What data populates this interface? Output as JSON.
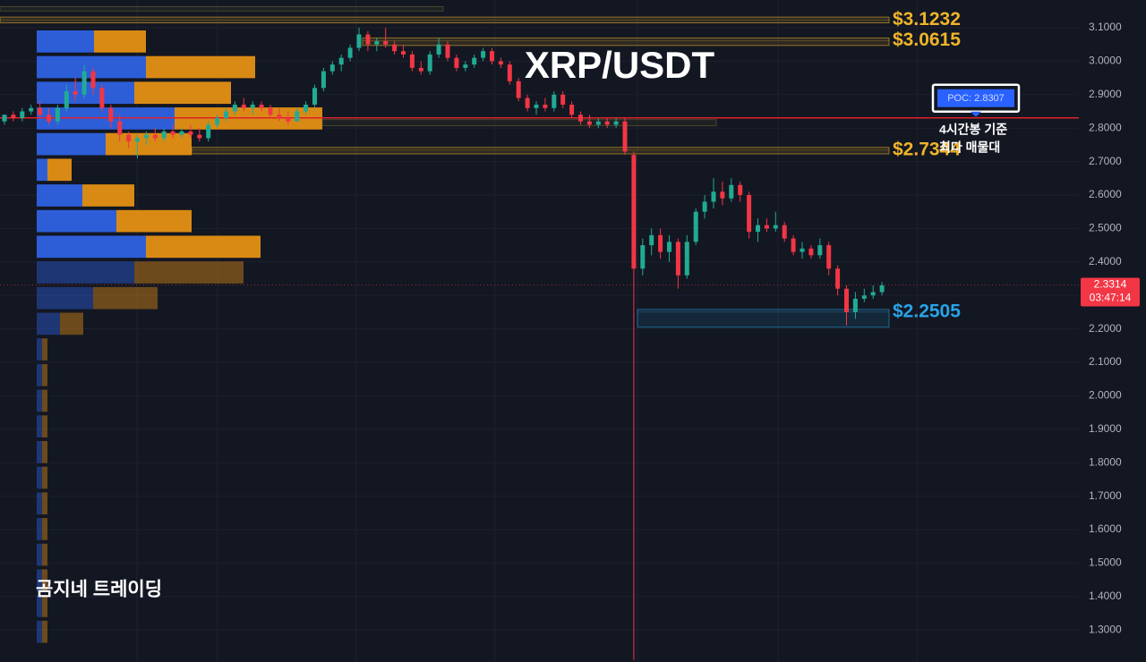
{
  "chart_data": {
    "type": "candlestick",
    "title": "XRP/USDT",
    "watermark": "곰지네 트레이딩",
    "up_color": "#22ab94",
    "down_color": "#f23645",
    "ylim": [
      1.2043,
      3.1829
    ],
    "yticks": [
      {
        "value": 3.1,
        "label": "3.1000"
      },
      {
        "value": 3.0,
        "label": "3.0000"
      },
      {
        "value": 2.9,
        "label": "2.9000"
      },
      {
        "value": 2.8,
        "label": "2.8000"
      },
      {
        "value": 2.7,
        "label": "2.7000"
      },
      {
        "value": 2.6,
        "label": "2.6000"
      },
      {
        "value": 2.5,
        "label": "2.5000"
      },
      {
        "value": 2.4,
        "label": "2.4000"
      },
      {
        "value": 2.3,
        "label": "2.3000"
      },
      {
        "value": 2.2,
        "label": "2.2000"
      },
      {
        "value": 2.1,
        "label": "2.1000"
      },
      {
        "value": 2.0,
        "label": "2.0000"
      },
      {
        "value": 1.9,
        "label": "1.9000"
      },
      {
        "value": 1.8,
        "label": "1.8000"
      },
      {
        "value": 1.7,
        "label": "1.7000"
      },
      {
        "value": 1.6,
        "label": "1.6000"
      },
      {
        "value": 1.5,
        "label": "1.5000"
      },
      {
        "value": 1.4,
        "label": "1.4000"
      },
      {
        "value": 1.3,
        "label": "1.3000"
      }
    ],
    "grid": true,
    "candles": [
      [
        2.82,
        2.84,
        2.81,
        2.84
      ],
      [
        2.84,
        2.85,
        2.82,
        2.83
      ],
      [
        2.83,
        2.86,
        2.82,
        2.85
      ],
      [
        2.85,
        2.87,
        2.84,
        2.86
      ],
      [
        2.86,
        2.88,
        2.83,
        2.84
      ],
      [
        2.84,
        2.86,
        2.81,
        2.82
      ],
      [
        2.82,
        2.87,
        2.81,
        2.86
      ],
      [
        2.86,
        2.93,
        2.85,
        2.91
      ],
      [
        2.91,
        2.95,
        2.88,
        2.9
      ],
      [
        2.9,
        2.99,
        2.89,
        2.97
      ],
      [
        2.97,
        2.98,
        2.9,
        2.92
      ],
      [
        2.92,
        2.93,
        2.85,
        2.86
      ],
      [
        2.86,
        2.87,
        2.8,
        2.82
      ],
      [
        2.82,
        2.84,
        2.76,
        2.78
      ],
      [
        2.78,
        2.79,
        2.74,
        2.76
      ],
      [
        2.76,
        2.78,
        2.71,
        2.77
      ],
      [
        2.77,
        2.79,
        2.75,
        2.78
      ],
      [
        2.78,
        2.8,
        2.76,
        2.77
      ],
      [
        2.77,
        2.8,
        2.76,
        2.79
      ],
      [
        2.79,
        2.81,
        2.77,
        2.78
      ],
      [
        2.78,
        2.8,
        2.77,
        2.79
      ],
      [
        2.79,
        2.81,
        2.77,
        2.78
      ],
      [
        2.78,
        2.8,
        2.76,
        2.77
      ],
      [
        2.77,
        2.82,
        2.76,
        2.81
      ],
      [
        2.81,
        2.84,
        2.8,
        2.83
      ],
      [
        2.83,
        2.86,
        2.82,
        2.85
      ],
      [
        2.85,
        2.88,
        2.84,
        2.87
      ],
      [
        2.87,
        2.89,
        2.85,
        2.86
      ],
      [
        2.86,
        2.88,
        2.84,
        2.87
      ],
      [
        2.87,
        2.88,
        2.85,
        2.86
      ],
      [
        2.86,
        2.87,
        2.83,
        2.84
      ],
      [
        2.84,
        2.86,
        2.82,
        2.83
      ],
      [
        2.83,
        2.85,
        2.81,
        2.82
      ],
      [
        2.82,
        2.86,
        2.82,
        2.85
      ],
      [
        2.85,
        2.88,
        2.84,
        2.87
      ],
      [
        2.87,
        2.93,
        2.86,
        2.92
      ],
      [
        2.92,
        2.98,
        2.91,
        2.97
      ],
      [
        2.97,
        3.0,
        2.96,
        2.99
      ],
      [
        2.99,
        3.02,
        2.97,
        3.01
      ],
      [
        3.01,
        3.05,
        3.0,
        3.04
      ],
      [
        3.04,
        3.1,
        3.03,
        3.08
      ],
      [
        3.08,
        3.09,
        3.03,
        3.05
      ],
      [
        3.05,
        3.07,
        3.03,
        3.06
      ],
      [
        3.06,
        3.1,
        3.04,
        3.05
      ],
      [
        3.05,
        3.06,
        3.02,
        3.03
      ],
      [
        3.03,
        3.05,
        3.01,
        3.02
      ],
      [
        3.02,
        3.03,
        2.97,
        2.98
      ],
      [
        2.98,
        3.0,
        2.96,
        2.97
      ],
      [
        2.97,
        3.03,
        2.96,
        3.02
      ],
      [
        3.02,
        3.07,
        3.01,
        3.05
      ],
      [
        3.05,
        3.06,
        3.0,
        3.01
      ],
      [
        3.01,
        3.02,
        2.97,
        2.98
      ],
      [
        2.98,
        3.0,
        2.97,
        2.99
      ],
      [
        2.99,
        3.02,
        2.98,
        3.01
      ],
      [
        3.01,
        3.04,
        3.0,
        3.03
      ],
      [
        3.03,
        3.04,
        2.99,
        3.0
      ],
      [
        3.0,
        3.01,
        2.98,
        2.99
      ],
      [
        2.99,
        3.0,
        2.93,
        2.94
      ],
      [
        2.94,
        2.95,
        2.88,
        2.89
      ],
      [
        2.89,
        2.9,
        2.85,
        2.86
      ],
      [
        2.86,
        2.88,
        2.84,
        2.87
      ],
      [
        2.87,
        2.89,
        2.85,
        2.86
      ],
      [
        2.86,
        2.91,
        2.85,
        2.9
      ],
      [
        2.9,
        2.91,
        2.86,
        2.87
      ],
      [
        2.87,
        2.88,
        2.83,
        2.84
      ],
      [
        2.84,
        2.85,
        2.81,
        2.82
      ],
      [
        2.82,
        2.84,
        2.8,
        2.81
      ],
      [
        2.81,
        2.83,
        2.8,
        2.82
      ],
      [
        2.82,
        2.83,
        2.8,
        2.81
      ],
      [
        2.81,
        2.83,
        2.8,
        2.82
      ],
      [
        2.82,
        2.83,
        2.72,
        2.73
      ],
      [
        2.72,
        2.73,
        1.21,
        2.38
      ],
      [
        2.38,
        2.47,
        2.36,
        2.45
      ],
      [
        2.45,
        2.5,
        2.42,
        2.48
      ],
      [
        2.48,
        2.5,
        2.41,
        2.43
      ],
      [
        2.43,
        2.48,
        2.4,
        2.46
      ],
      [
        2.46,
        2.47,
        2.32,
        2.36
      ],
      [
        2.36,
        2.48,
        2.35,
        2.46
      ],
      [
        2.46,
        2.56,
        2.45,
        2.55
      ],
      [
        2.55,
        2.6,
        2.53,
        2.58
      ],
      [
        2.58,
        2.65,
        2.56,
        2.61
      ],
      [
        2.61,
        2.64,
        2.57,
        2.59
      ],
      [
        2.59,
        2.65,
        2.58,
        2.63
      ],
      [
        2.63,
        2.64,
        2.58,
        2.6
      ],
      [
        2.6,
        2.61,
        2.47,
        2.49
      ],
      [
        2.49,
        2.53,
        2.46,
        2.51
      ],
      [
        2.51,
        2.53,
        2.49,
        2.5
      ],
      [
        2.5,
        2.55,
        2.49,
        2.51
      ],
      [
        2.51,
        2.52,
        2.46,
        2.47
      ],
      [
        2.47,
        2.48,
        2.42,
        2.43
      ],
      [
        2.43,
        2.46,
        2.41,
        2.44
      ],
      [
        2.44,
        2.45,
        2.41,
        2.42
      ],
      [
        2.42,
        2.47,
        2.41,
        2.45
      ],
      [
        2.45,
        2.46,
        2.36,
        2.38
      ],
      [
        2.38,
        2.39,
        2.3,
        2.32
      ],
      [
        2.32,
        2.33,
        2.21,
        2.25
      ],
      [
        2.25,
        2.31,
        2.23,
        2.29
      ],
      [
        2.29,
        2.32,
        2.28,
        2.3
      ],
      [
        2.3,
        2.33,
        2.29,
        2.31
      ],
      [
        2.31,
        2.34,
        2.3,
        2.33
      ]
    ],
    "volume_profile": {
      "bins": [
        3.0973,
        3.0206,
        2.9439,
        2.8672,
        2.7905,
        2.7138,
        2.6371,
        2.5604,
        2.4837,
        2.407,
        2.3303,
        2.2536,
        2.1769,
        2.1002,
        2.0235,
        1.9468,
        1.8701,
        1.7934,
        1.7167,
        1.64,
        1.5633,
        1.4866,
        1.4099,
        1.3332,
        1.2565
      ],
      "buy": [
        64,
        122,
        109,
        154,
        77,
        12,
        51,
        89,
        122,
        109,
        63,
        26,
        6,
        6,
        6,
        6,
        6,
        6,
        6,
        6,
        6,
        6,
        6,
        6
      ],
      "sell": [
        58,
        122,
        108,
        165,
        96,
        27,
        58,
        84,
        128,
        122,
        72,
        26,
        6,
        6,
        6,
        6,
        6,
        6,
        6,
        6,
        6,
        6,
        6,
        6
      ],
      "buy_color": "#2d5ed8",
      "sell_color": "#d98a14",
      "value_area_low": 2.407
    },
    "zones": [
      {
        "top": 3.163,
        "bottom": 3.15,
        "color": "#6e6a34"
      },
      {
        "top": 3.1318,
        "bottom": 3.1145,
        "value": 3.1232,
        "label": "$3.1232",
        "color": "#f0b429"
      },
      {
        "top": 3.0695,
        "bottom": 3.047,
        "value": 3.0615,
        "label": "$3.0615",
        "color": "#f0b429"
      },
      {
        "top": 2.7425,
        "bottom": 2.723,
        "value": 2.7344,
        "label": "$2.7344",
        "color": "#f0b429"
      },
      {
        "top": 2.258,
        "bottom": 2.205,
        "value": 2.2505,
        "label": "$2.2505",
        "color": "#29a3e8"
      },
      {
        "top": 2.8255,
        "bottom": 2.807,
        "color": "#6e6a34"
      }
    ],
    "poc": {
      "value": 2.8307,
      "label": "POC: 2.8307",
      "color": "#e0202a"
    },
    "poc_note": [
      "4시간봉 기준",
      "최다 매물대"
    ],
    "current_price": 2.3314,
    "countdown": "03:47:14"
  }
}
